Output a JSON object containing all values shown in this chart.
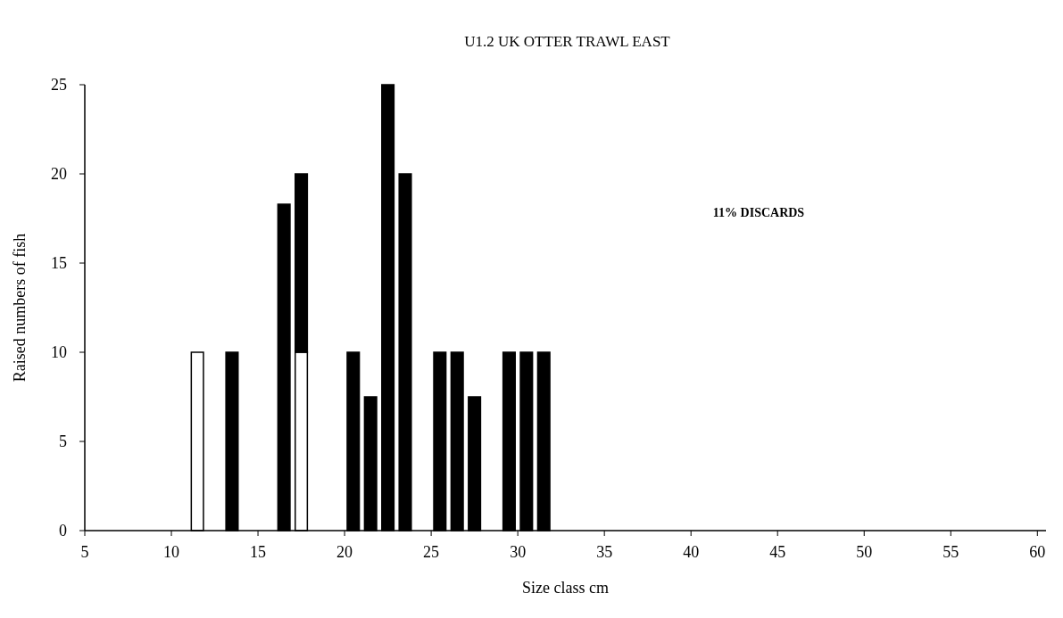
{
  "chart_data": {
    "type": "bar",
    "title": "U1.2 UK OTTER TRAWL EAST",
    "xlabel": "Size class cm",
    "ylabel": "Raised numbers of fish",
    "annotations": [
      "11% DISCARDS"
    ],
    "x": [
      11.5,
      13.5,
      16.5,
      17.5,
      20.5,
      21.5,
      22.5,
      23.5,
      25.5,
      26.5,
      27.5,
      29.5,
      30.5,
      31.5
    ],
    "stacked": true,
    "series": [
      {
        "color": "#ffffff",
        "values": [
          10,
          null,
          null,
          10,
          null,
          null,
          null,
          null,
          null,
          null,
          null,
          null,
          null,
          null
        ]
      },
      {
        "color": "#000000",
        "values": [
          null,
          10,
          18.3,
          10,
          10,
          7.5,
          25,
          20,
          10,
          10,
          7.5,
          10,
          10,
          10
        ]
      }
    ],
    "xlim": [
      5,
      60.5
    ],
    "xticks": [
      5,
      10,
      15,
      20,
      25,
      30,
      35,
      40,
      45,
      50,
      55,
      60
    ],
    "ylim": [
      0,
      25
    ],
    "yticks": [
      0,
      5,
      10,
      15,
      20,
      25
    ],
    "grid": false
  }
}
